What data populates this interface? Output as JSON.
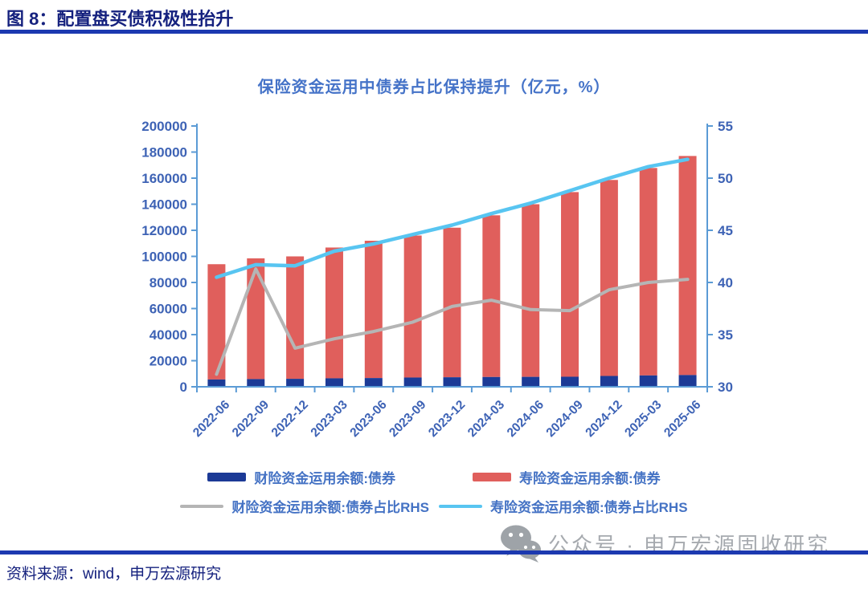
{
  "header": {
    "title": "图 8：配置盘买债积极性抬升"
  },
  "chart_data": {
    "type": "bar+line combo (stacked bars, dual axis)",
    "title": "保险资金运用中债券占比保持提升（亿元，%）",
    "categories": [
      "2022-06",
      "2022-09",
      "2022-12",
      "2023-03",
      "2023-06",
      "2023-09",
      "2023-12",
      "2024-03",
      "2024-06",
      "2024-09",
      "2024-12",
      "2025-03",
      "2025-06"
    ],
    "series": [
      {
        "name": "财险资金运用余额:债券",
        "type": "bar",
        "axis": "left",
        "stack": "bonds",
        "color": "#1C3A96",
        "values": [
          5600,
          5900,
          6100,
          6500,
          6700,
          7100,
          7300,
          7500,
          7600,
          7700,
          8300,
          8700,
          9000
        ]
      },
      {
        "name": "寿险资金运用余额:债券",
        "type": "bar",
        "axis": "left",
        "stack": "bonds",
        "color": "#E05F5C",
        "values": [
          88400,
          92600,
          93900,
          100300,
          105300,
          108900,
          114700,
          124000,
          132400,
          141600,
          150300,
          159100,
          168000
        ]
      },
      {
        "name": "财险资金运用余额:债券占比RHS",
        "type": "line",
        "axis": "right",
        "color": "#B5B5B5",
        "values": [
          31.2,
          41.3,
          33.7,
          34.6,
          35.3,
          36.2,
          37.7,
          38.3,
          37.4,
          37.3,
          39.3,
          40.0,
          40.3
        ]
      },
      {
        "name": "寿险资金运用余额:债券占比RHS",
        "type": "line",
        "axis": "right",
        "color": "#58C5F1",
        "values": [
          40.5,
          41.7,
          41.6,
          43.0,
          43.7,
          44.6,
          45.5,
          46.6,
          47.6,
          48.8,
          50.0,
          51.1,
          51.8
        ]
      }
    ],
    "left_axis": {
      "min": 0,
      "max": 200000,
      "ticks": [
        0,
        20000,
        40000,
        60000,
        80000,
        100000,
        120000,
        140000,
        160000,
        180000,
        200000
      ]
    },
    "right_axis": {
      "min": 30,
      "max": 55,
      "ticks": [
        30,
        35,
        40,
        45,
        50,
        55
      ]
    },
    "legend_position": "bottom",
    "grid": false
  },
  "footer": {
    "source": "资料来源：wind，申万宏源研究"
  },
  "watermark": {
    "text": "公众号 · 申万宏源固收研究",
    "icon": "wechat-icon"
  },
  "colors": {
    "header_navy": "#15217E",
    "rule_blue": "#1C39B0",
    "chart_title_blue": "#4573C8",
    "axis_line_blue": "#5B9BD5",
    "axis_label_blue": "#3E63B5",
    "bar_navy": "#1C3A96",
    "bar_red": "#E05F5C",
    "line_gray": "#B5B5B5",
    "line_cyan": "#58C5F1",
    "legend_text_blue": "#4472C4",
    "watermark_gray": "#A6AAAF"
  }
}
